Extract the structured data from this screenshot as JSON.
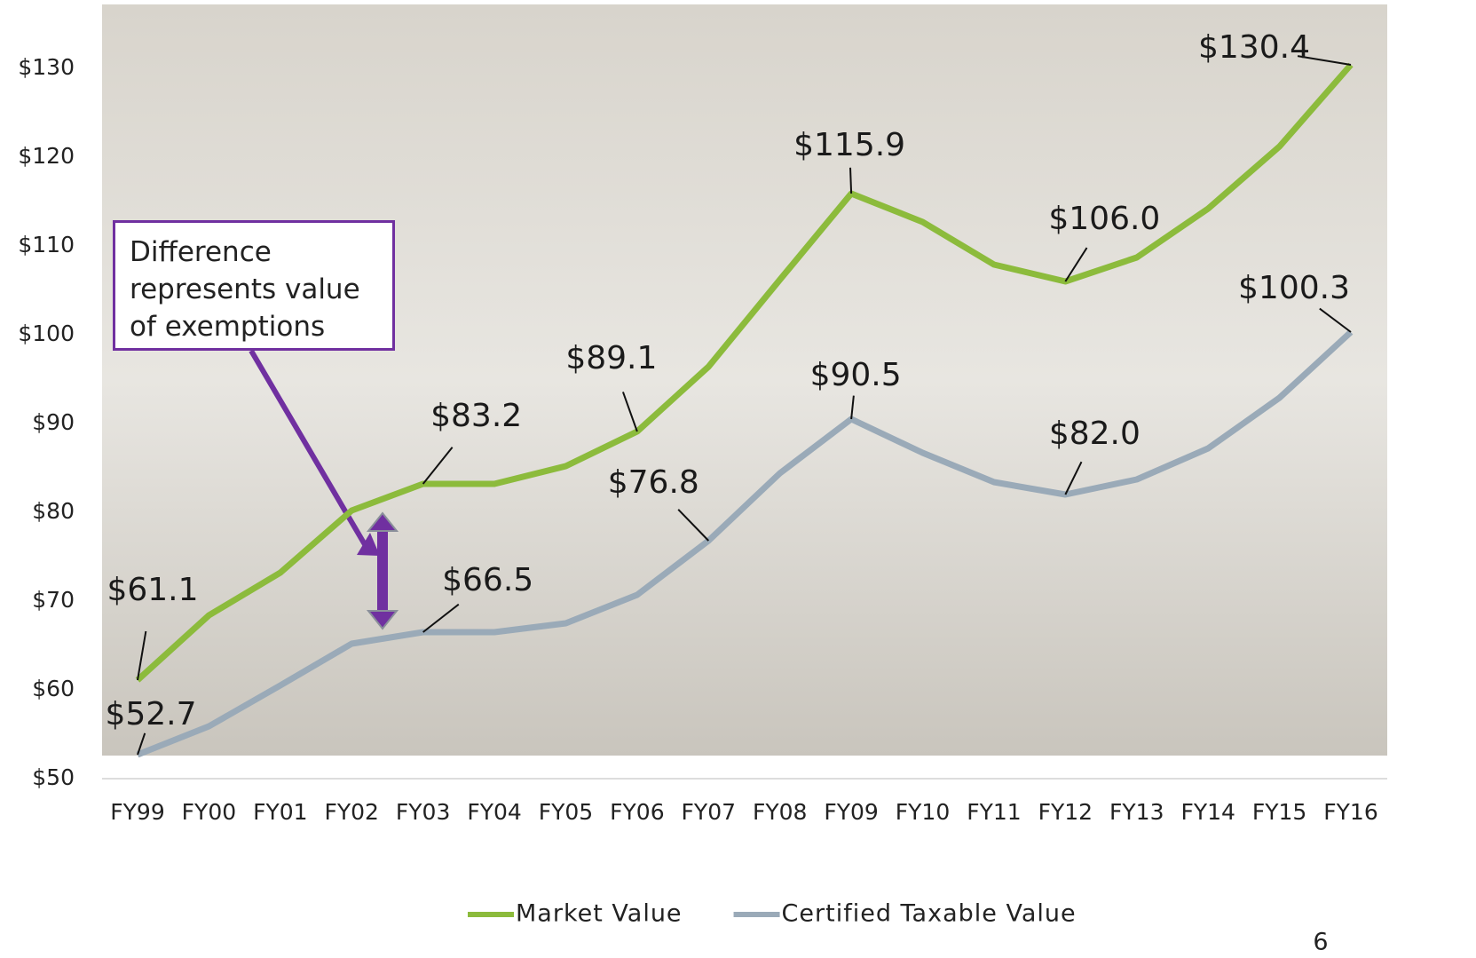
{
  "chart_data": {
    "type": "line",
    "categories": [
      "FY99",
      "FY00",
      "FY01",
      "FY02",
      "FY03",
      "FY04",
      "FY05",
      "FY06",
      "FY07",
      "FY08",
      "FY09",
      "FY10",
      "FY11",
      "FY12",
      "FY13",
      "FY14",
      "FY15",
      "FY16"
    ],
    "series": [
      {
        "name": "Market Value",
        "color": "#8cbb3c",
        "values": [
          61.1,
          68.4,
          73.2,
          80.2,
          83.2,
          83.2,
          85.2,
          89.1,
          96.4,
          106.2,
          115.9,
          112.7,
          107.9,
          106.0,
          108.7,
          114.2,
          121.2,
          130.4
        ],
        "value_labels": [
          "$61.1",
          null,
          null,
          null,
          "$83.2",
          null,
          null,
          "$89.1",
          null,
          null,
          "$115.9",
          null,
          null,
          "$106.0",
          null,
          null,
          null,
          "$130.4"
        ]
      },
      {
        "name": "Certified Taxable Value",
        "color": "#9aaab8",
        "values": [
          52.7,
          55.9,
          60.5,
          65.2,
          66.5,
          66.5,
          67.5,
          70.7,
          76.8,
          84.4,
          90.5,
          86.7,
          83.4,
          82.0,
          83.7,
          87.2,
          92.9,
          100.3
        ],
        "value_labels": [
          "$52.7",
          null,
          null,
          null,
          "$66.5",
          null,
          null,
          null,
          "$76.8",
          null,
          "$90.5",
          null,
          null,
          "$82.0",
          null,
          null,
          null,
          "$100.3"
        ]
      }
    ],
    "ylim": [
      50,
      135
    ],
    "yticks": [
      {
        "value": 50,
        "label": "$50"
      },
      {
        "value": 60,
        "label": "$60"
      },
      {
        "value": 70,
        "label": "$70"
      },
      {
        "value": 80,
        "label": "$80"
      },
      {
        "value": 90,
        "label": "$90"
      },
      {
        "value": 100,
        "label": "$100"
      },
      {
        "value": 110,
        "label": "$110"
      },
      {
        "value": 120,
        "label": "$120"
      },
      {
        "value": 130,
        "label": "$130"
      }
    ],
    "annotation": "Difference represents value of exemptions",
    "legend": "bottom"
  },
  "page_number": "6"
}
